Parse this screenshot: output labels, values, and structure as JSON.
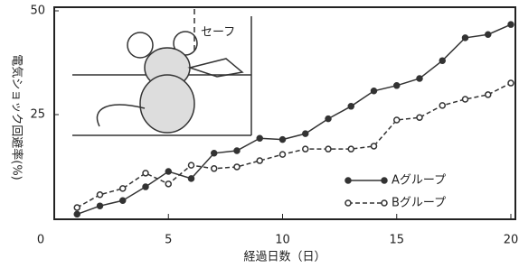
{
  "chart_data": {
    "type": "line",
    "y_label": "電気ショック回避率(%)",
    "x_label": "経過日数（日）",
    "illustration_text": "セーフ",
    "x": [
      1,
      2,
      3,
      4,
      5,
      6,
      7,
      8,
      9,
      10,
      11,
      12,
      13,
      14,
      15,
      16,
      17,
      18,
      19,
      20
    ],
    "xlim": [
      0,
      20
    ],
    "xticks": [
      0,
      5,
      10,
      15,
      20
    ],
    "ylim": [
      0,
      50
    ],
    "yticks": [
      25,
      50
    ],
    "series": [
      {
        "name": "Aグループ",
        "color": "#333333",
        "style": "solid",
        "values": [
          1,
          3,
          4.3,
          7.6,
          11.3,
          9.6,
          15.7,
          16.3,
          19.3,
          19,
          20.4,
          24,
          27,
          30.7,
          32,
          33.7,
          38,
          43.5,
          44.3,
          46.7
        ]
      },
      {
        "name": "Bグループ",
        "color": "#333333",
        "style": "dashed",
        "values": [
          2.6,
          5.7,
          7.2,
          10.9,
          8.3,
          12.8,
          12,
          12.4,
          13.9,
          15.4,
          16.7,
          16.7,
          16.7,
          17.4,
          23.7,
          24.3,
          27.2,
          28.7,
          29.8,
          32.6
        ]
      }
    ]
  }
}
